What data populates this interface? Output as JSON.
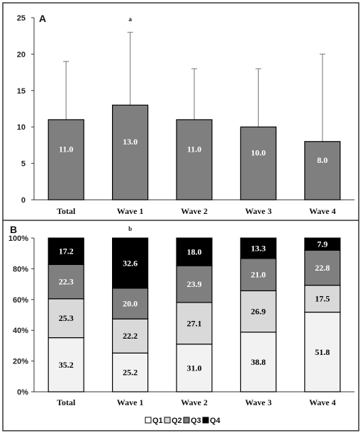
{
  "chart_data": [
    {
      "type": "bar",
      "panel_label": "A",
      "annotation": "a",
      "annotation_category": "Wave 1",
      "categories": [
        "Total",
        "Wave 1",
        "Wave 2",
        "Wave 3",
        "Wave 4"
      ],
      "values": [
        11.0,
        13.0,
        11.0,
        10.0,
        8.0
      ],
      "value_labels": [
        "11.0",
        "13.0",
        "11.0",
        "10.0",
        "8.0"
      ],
      "error_upper": [
        19,
        23,
        18,
        18,
        20
      ],
      "ylim": [
        0,
        25
      ],
      "yticks": [
        0,
        5,
        10,
        15,
        20,
        25
      ],
      "ytick_labels": [
        "0",
        "5",
        "10",
        "15",
        "20",
        "25"
      ],
      "bar_color": "#7f7f7f"
    },
    {
      "type": "bar",
      "stacked": true,
      "panel_label": "B",
      "annotation": "b",
      "annotation_category": "Wave 1",
      "categories": [
        "Total",
        "Wave 1",
        "Wave 2",
        "Wave 3",
        "Wave 4"
      ],
      "series": [
        {
          "name": "Q1",
          "values": [
            35.2,
            25.2,
            31.0,
            38.8,
            51.8
          ],
          "labels": [
            "35.2",
            "25.2",
            "31.0",
            "38.8",
            "51.8"
          ],
          "color": "#f2f2f2",
          "text_color": "#000000"
        },
        {
          "name": "Q2",
          "values": [
            25.3,
            22.2,
            27.1,
            26.9,
            17.5
          ],
          "labels": [
            "25.3",
            "22.2",
            "27.1",
            "26.9",
            "17.5"
          ],
          "color": "#d9d9d9",
          "text_color": "#000000"
        },
        {
          "name": "Q3",
          "values": [
            22.3,
            20.0,
            23.9,
            21.0,
            22.8
          ],
          "labels": [
            "22.3",
            "20.0",
            "23.9",
            "21.0",
            "22.8"
          ],
          "color": "#7f7f7f",
          "text_color": "#ffffff"
        },
        {
          "name": "Q4",
          "values": [
            17.2,
            32.6,
            18.0,
            13.3,
            7.9
          ],
          "labels": [
            "17.2",
            "32.6",
            "18.0",
            "13.3",
            "7.9"
          ],
          "color": "#000000",
          "text_color": "#ffffff"
        }
      ],
      "ylim": [
        0,
        100
      ],
      "yticks": [
        0,
        20,
        40,
        60,
        80,
        100
      ],
      "ytick_labels": [
        "0%",
        "20%",
        "40%",
        "60%",
        "80%",
        "100%"
      ],
      "legend_position": "bottom"
    }
  ]
}
